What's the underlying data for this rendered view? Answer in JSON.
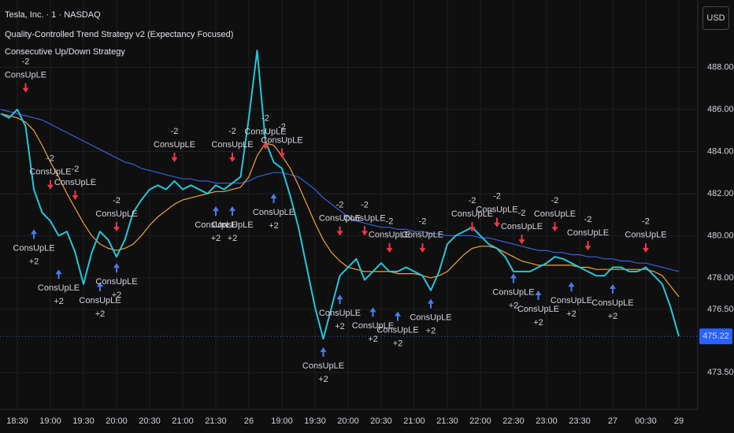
{
  "chart_data": {
    "type": "line",
    "title": "Tesla, Inc. · 1 · NASDAQ",
    "indicators": [
      "Quality-Controlled Trend Strategy v2 (Expectancy Focused)",
      "Consecutive Up/Down Strategy"
    ],
    "currency_button": "USD",
    "categories": [
      null,
      null,
      "18:30",
      null,
      null,
      null,
      "19:00",
      null,
      null,
      null,
      "19:30",
      null,
      null,
      null,
      "20:00",
      null,
      null,
      null,
      "20:30",
      null,
      null,
      null,
      "21:00",
      null,
      null,
      null,
      "21:30",
      null,
      null,
      null,
      "26",
      null,
      null,
      null,
      "19:00",
      null,
      null,
      null,
      "19:30",
      null,
      null,
      null,
      "20:00",
      null,
      null,
      null,
      "20:30",
      null,
      null,
      null,
      "21:00",
      null,
      null,
      null,
      "21:30",
      null,
      null,
      null,
      "22:00",
      null,
      null,
      null,
      "22:30",
      null,
      null,
      null,
      "23:00",
      null,
      null,
      null,
      "23:30",
      null,
      null,
      null,
      "27",
      null,
      null,
      null,
      "00:30",
      null,
      null,
      null,
      "29"
    ],
    "series": [
      {
        "color": "#3a5fd8",
        "values": [
          486.0,
          485.9,
          485.8,
          485.7,
          485.6,
          485.5,
          485.3,
          485.1,
          484.9,
          484.7,
          484.5,
          484.3,
          484.1,
          483.9,
          483.7,
          483.5,
          483.4,
          483.2,
          483.1,
          483.0,
          482.9,
          482.8,
          482.7,
          482.7,
          482.6,
          482.6,
          482.5,
          482.5,
          482.5,
          482.5,
          482.6,
          482.8,
          482.9,
          483.0,
          483.0,
          482.9,
          482.8,
          482.5,
          482.2,
          481.8,
          481.5,
          481.2,
          480.9,
          480.7,
          480.6,
          480.5,
          480.4,
          480.4,
          480.3,
          480.3,
          480.2,
          480.2,
          480.1,
          480.1,
          480.0,
          480.0,
          480.0,
          480.0,
          479.9,
          479.9,
          479.8,
          479.7,
          479.6,
          479.5,
          479.4,
          479.3,
          479.3,
          479.2,
          479.2,
          479.1,
          479.1,
          479.0,
          479.0,
          478.9,
          478.9,
          478.8,
          478.8,
          478.7,
          478.7,
          478.6,
          478.5,
          478.4,
          478.3
        ]
      },
      {
        "color": "#f2a33a",
        "values": [
          485.8,
          485.7,
          485.6,
          485.4,
          485.0,
          484.3,
          483.5,
          482.8,
          482.0,
          481.3,
          480.6,
          480.0,
          479.6,
          479.4,
          479.3,
          479.4,
          479.6,
          480.0,
          480.5,
          480.9,
          481.2,
          481.5,
          481.7,
          481.8,
          481.9,
          482.0,
          482.1,
          482.1,
          482.2,
          482.3,
          482.8,
          483.8,
          484.4,
          484.3,
          483.8,
          483.2,
          482.4,
          481.5,
          480.6,
          479.8,
          479.2,
          478.8,
          478.5,
          478.4,
          478.3,
          478.3,
          478.3,
          478.3,
          478.2,
          478.2,
          478.2,
          478.1,
          478.0,
          478.1,
          478.3,
          478.7,
          479.1,
          479.4,
          479.5,
          479.5,
          479.4,
          479.2,
          479.0,
          478.8,
          478.7,
          478.6,
          478.6,
          478.6,
          478.6,
          478.6,
          478.5,
          478.5,
          478.4,
          478.4,
          478.4,
          478.4,
          478.4,
          478.4,
          478.4,
          478.3,
          478.1,
          477.6,
          477.1
        ]
      },
      {
        "color": "#26c6da",
        "values": [
          485.8,
          485.6,
          486.0,
          485.2,
          482.2,
          481.1,
          480.7,
          480.0,
          480.2,
          479.2,
          477.7,
          479.2,
          480.2,
          479.8,
          479.0,
          479.8,
          481.1,
          481.7,
          482.2,
          482.4,
          482.2,
          482.6,
          482.2,
          482.4,
          482.2,
          482.0,
          482.4,
          482.2,
          482.5,
          482.8,
          485.6,
          488.8,
          484.5,
          483.5,
          483.2,
          481.9,
          480.4,
          478.5,
          476.6,
          475.1,
          476.6,
          478.1,
          478.5,
          478.9,
          477.9,
          478.3,
          478.7,
          478.3,
          478.3,
          478.5,
          478.3,
          478.1,
          477.4,
          478.3,
          479.6,
          480.0,
          480.2,
          480.4,
          480.0,
          479.6,
          479.4,
          479.0,
          478.3,
          478.3,
          478.3,
          478.5,
          478.7,
          479.0,
          478.9,
          478.7,
          478.5,
          478.3,
          478.1,
          478.1,
          478.5,
          478.5,
          478.3,
          478.3,
          478.5,
          478.1,
          477.7,
          476.6,
          475.22
        ]
      }
    ],
    "last_price": 475.22,
    "long_signals": {
      "label": "ConsUpLE",
      "qty": "+2",
      "color": "#4a7cf0",
      "values": [
        null,
        null,
        null,
        null,
        480.3,
        null,
        null,
        478.4,
        null,
        null,
        null,
        null,
        477.8,
        null,
        478.7,
        null,
        null,
        null,
        null,
        null,
        null,
        null,
        null,
        null,
        null,
        null,
        481.4,
        null,
        481.4,
        null,
        null,
        null,
        null,
        482.0,
        null,
        null,
        null,
        null,
        null,
        474.7,
        null,
        477.2,
        null,
        null,
        null,
        476.6,
        null,
        null,
        476.4,
        null,
        null,
        null,
        477.0,
        null,
        null,
        null,
        null,
        null,
        null,
        null,
        null,
        null,
        478.2,
        null,
        null,
        477.4,
        null,
        null,
        null,
        477.8,
        null,
        null,
        null,
        null,
        477.7,
        null,
        null,
        null,
        null,
        null,
        null,
        null,
        null
      ]
    },
    "short_signals": {
      "label": "ConsUpLE",
      "qty": "-2",
      "color": "#f23645",
      "values": [
        null,
        null,
        null,
        486.8,
        null,
        null,
        482.2,
        null,
        null,
        481.7,
        null,
        null,
        null,
        null,
        480.2,
        null,
        null,
        null,
        null,
        null,
        null,
        483.5,
        null,
        null,
        null,
        null,
        null,
        null,
        483.5,
        null,
        null,
        null,
        484.1,
        null,
        483.7,
        null,
        null,
        null,
        null,
        null,
        null,
        480.0,
        null,
        null,
        480.0,
        null,
        null,
        479.2,
        null,
        null,
        null,
        479.2,
        null,
        null,
        null,
        null,
        null,
        480.2,
        null,
        null,
        480.4,
        null,
        null,
        479.6,
        null,
        null,
        null,
        480.2,
        null,
        null,
        null,
        479.3,
        null,
        null,
        null,
        null,
        null,
        null,
        479.2,
        null,
        null,
        null,
        null
      ]
    },
    "ylim": [
      471.75,
      491.2
    ],
    "yticks": [
      {
        "value": 473.5,
        "label": "473.50"
      },
      {
        "value": 476.5,
        "label": "476.50"
      },
      {
        "value": 478,
        "label": "478.00"
      },
      {
        "value": 480,
        "label": "480.00"
      },
      {
        "value": 482,
        "label": "482.00"
      },
      {
        "value": 484,
        "label": "484.00"
      },
      {
        "value": 486,
        "label": "486.00"
      },
      {
        "value": 488,
        "label": "488.00"
      }
    ],
    "grid": true
  }
}
